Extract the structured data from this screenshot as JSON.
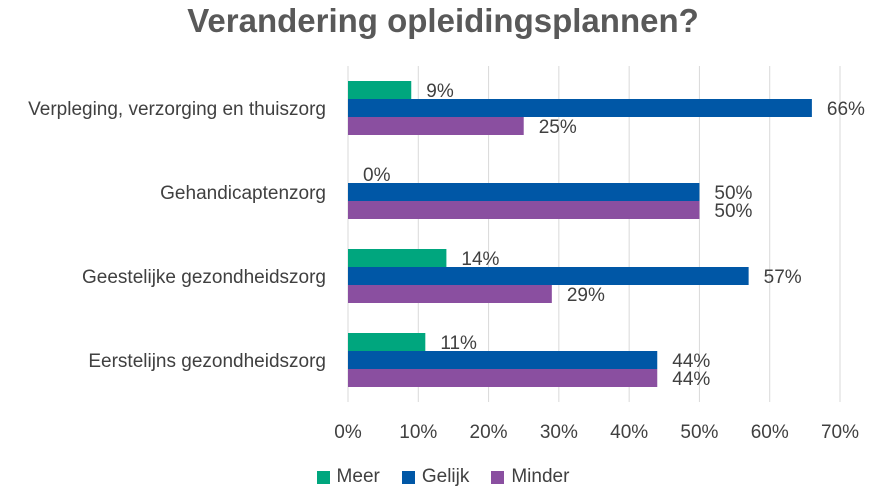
{
  "chart_data": {
    "type": "bar",
    "orientation": "horizontal",
    "title": "Verandering opleidingsplannen?",
    "categories": [
      "Verpleging, verzorging en thuiszorg",
      "Gehandicaptenzorg",
      "Geestelijke gezondheidszorg",
      "Eerstelijns gezondheidszorg"
    ],
    "series": [
      {
        "name": "Meer",
        "color": "#00A67E",
        "values": [
          9,
          0,
          14,
          11
        ],
        "labels": [
          "9%",
          "0%",
          "14%",
          "11%"
        ]
      },
      {
        "name": "Gelijk",
        "color": "#0057A6",
        "values": [
          66,
          50,
          57,
          44
        ],
        "labels": [
          "66%",
          "50%",
          "57%",
          "44%"
        ]
      },
      {
        "name": "Minder",
        "color": "#8A4FA0",
        "values": [
          25,
          50,
          29,
          44
        ],
        "labels": [
          "25%",
          "50%",
          "29%",
          "44%"
        ]
      }
    ],
    "xlim": [
      0,
      70
    ],
    "xticks": [
      "0%",
      "10%",
      "20%",
      "30%",
      "40%",
      "50%",
      "60%",
      "70%"
    ],
    "grid": true,
    "legend": "bottom"
  }
}
